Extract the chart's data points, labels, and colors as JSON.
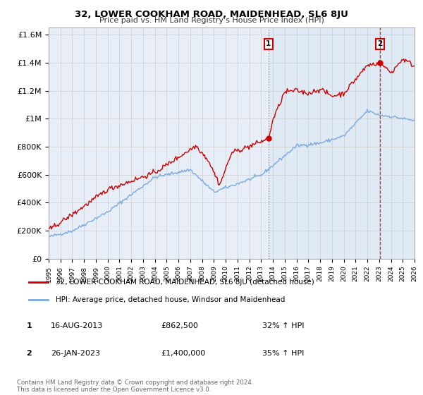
{
  "title": "32, LOWER COOKHAM ROAD, MAIDENHEAD, SL6 8JU",
  "subtitle": "Price paid vs. HM Land Registry's House Price Index (HPI)",
  "ylim": [
    0,
    1650000
  ],
  "yticks": [
    0,
    200000,
    400000,
    600000,
    800000,
    1000000,
    1200000,
    1400000,
    1600000
  ],
  "ytick_labels": [
    "£0",
    "£200K",
    "£400K",
    "£600K",
    "£800K",
    "£1M",
    "£1.2M",
    "£1.4M",
    "£1.6M"
  ],
  "red_color": "#cc0000",
  "blue_color": "#7aaadd",
  "grid_color": "#cccccc",
  "bg_color": "#e8eef8",
  "bg_color_right": "#dce8f4",
  "transaction1_year": 2013.62,
  "transaction1_value": 862500,
  "transaction2_year": 2023.08,
  "transaction2_value": 1400000,
  "legend_line1": "32, LOWER COOKHAM ROAD, MAIDENHEAD, SL6 8JU (detached house)",
  "legend_line2": "HPI: Average price, detached house, Windsor and Maidenhead",
  "table_row1": [
    "1",
    "16-AUG-2013",
    "£862,500",
    "32% ↑ HPI"
  ],
  "table_row2": [
    "2",
    "26-JAN-2023",
    "£1,400,000",
    "35% ↑ HPI"
  ],
  "footnote": "Contains HM Land Registry data © Crown copyright and database right 2024.\nThis data is licensed under the Open Government Licence v3.0.",
  "xmin": 1995,
  "xmax": 2026
}
